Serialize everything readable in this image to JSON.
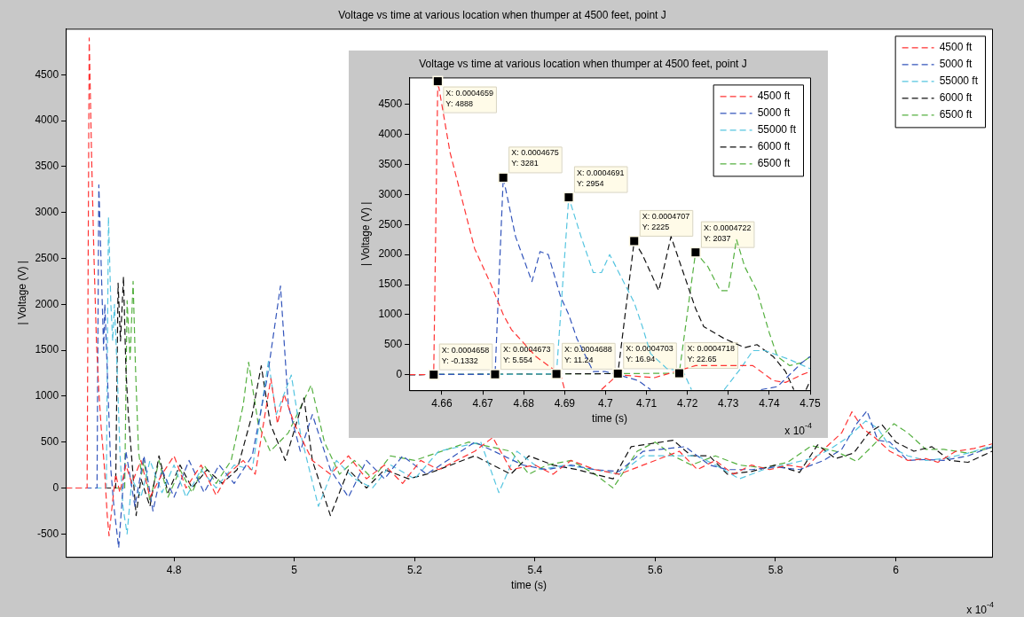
{
  "chart_data": [
    {
      "type": "line",
      "title": "Voltage vs time at various location when thumper at 4500 feet, point J",
      "xlabel": "time (s)",
      "ylabel": "| Voltage (V) |",
      "xlim": [
        4.62,
        6.16
      ],
      "ylim": [
        -750,
        5000
      ],
      "xticks": [
        4.8,
        5,
        5.2,
        5.4,
        5.6,
        5.8,
        6
      ],
      "yticks": [
        -500,
        0,
        500,
        1000,
        1500,
        2000,
        2500,
        3000,
        3500,
        4000,
        4500
      ],
      "legend": "top right",
      "line_style": "dashed",
      "annotations": [
        "x 10$^{-4}$"
      ],
      "series": [
        {
          "name": "4500 ft",
          "color": "#ff3333",
          "x": [
            4.62,
            4.6555,
            4.659,
            4.663,
            4.667,
            4.671,
            4.675,
            4.679,
            4.684,
            4.689,
            4.692,
            4.697,
            4.703,
            4.71,
            4.72,
            4.73,
            4.745,
            4.76,
            4.78,
            4.8,
            4.82,
            4.845,
            4.87,
            4.89,
            4.915,
            4.935,
            4.961,
            4.972,
            4.983,
            5.0,
            5.03,
            5.06,
            5.09,
            5.12,
            5.15,
            5.18,
            5.21,
            5.24,
            5.3,
            5.33,
            5.36,
            5.4,
            5.43,
            5.46,
            5.5,
            5.54,
            5.64,
            5.67,
            5.7,
            5.73,
            5.76,
            5.79,
            5.82,
            5.85,
            5.88,
            5.91,
            5.927,
            5.945,
            5.965,
            5.99,
            6.02,
            6.05,
            6.07,
            6.1,
            6.13,
            6.16
          ],
          "values": [
            0,
            0,
            4900,
            3600,
            2500,
            1600,
            1050,
            650,
            250,
            -300,
            -520,
            -200,
            150,
            -50,
            250,
            50,
            300,
            -100,
            150,
            350,
            0,
            250,
            -80,
            150,
            300,
            150,
            1190,
            700,
            1020,
            700,
            300,
            150,
            350,
            100,
            250,
            50,
            300,
            200,
            400,
            550,
            200,
            250,
            150,
            300,
            200,
            150,
            400,
            200,
            300,
            150,
            250,
            200,
            250,
            220,
            420,
            600,
            830,
            650,
            550,
            400,
            300,
            320,
            280,
            400,
            430,
            480
          ]
        },
        {
          "name": "5000 ft",
          "color": "#3355bb",
          "x": [
            4.62,
            4.672,
            4.675,
            4.679,
            4.683,
            4.685,
            4.69,
            4.695,
            4.7,
            4.708,
            4.714,
            4.72,
            4.735,
            4.75,
            4.765,
            4.78,
            4.8,
            4.825,
            4.85,
            4.875,
            4.9,
            4.93,
            4.955,
            4.977,
            4.99,
            5.01,
            5.03,
            5.06,
            5.09,
            5.12,
            5.15,
            5.18,
            5.22,
            5.3,
            5.38,
            5.42,
            5.46,
            5.5,
            5.54,
            5.58,
            5.65,
            5.69,
            5.72,
            5.76,
            5.8,
            5.84,
            5.88,
            5.91,
            5.935,
            5.952,
            5.97,
            5.99,
            6.02,
            6.05,
            6.08,
            6.12,
            6.16
          ],
          "values": [
            0,
            0,
            3300,
            2400,
            1500,
            2000,
            1100,
            200,
            -200,
            -650,
            -100,
            400,
            -200,
            350,
            -250,
            200,
            -100,
            300,
            -50,
            250,
            50,
            350,
            1200,
            2200,
            900,
            400,
            800,
            200,
            -100,
            300,
            100,
            350,
            150,
            500,
            250,
            200,
            250,
            200,
            180,
            400,
            450,
            250,
            200,
            200,
            230,
            200,
            300,
            420,
            700,
            840,
            520,
            500,
            300,
            310,
            300,
            350,
            450
          ]
        },
        {
          "name": "55000 ft",
          "color": "#55c5e0",
          "x": [
            4.62,
            4.6875,
            4.691,
            4.695,
            4.698,
            4.701,
            4.706,
            4.71,
            4.715,
            4.722,
            4.73,
            4.745,
            4.76,
            4.78,
            4.8,
            4.82,
            4.845,
            4.87,
            4.9,
            4.93,
            4.957,
            4.97,
            4.995,
            5.01,
            5.04,
            5.07,
            5.1,
            5.13,
            5.16,
            5.2,
            5.24,
            5.31,
            5.34,
            5.37,
            5.41,
            5.45,
            5.5,
            5.54,
            5.58,
            5.67,
            5.7,
            5.74,
            5.78,
            5.82,
            5.86,
            5.89,
            5.92,
            5.95,
            5.97,
            5.99,
            6.02,
            6.05,
            6.08,
            6.12,
            6.16
          ],
          "values": [
            0,
            0,
            2950,
            2000,
            1600,
            2000,
            1200,
            400,
            -200,
            -500,
            100,
            -100,
            300,
            -50,
            250,
            -100,
            200,
            0,
            250,
            200,
            1380,
            800,
            1230,
            600,
            -200,
            300,
            100,
            0,
            250,
            100,
            400,
            500,
            -50,
            400,
            200,
            250,
            200,
            150,
            350,
            350,
            250,
            100,
            200,
            260,
            320,
            420,
            550,
            730,
            650,
            450,
            350,
            300,
            320,
            380,
            460
          ]
        },
        {
          "name": "6000 ft",
          "color": "#111111",
          "x": [
            4.62,
            4.703,
            4.707,
            4.711,
            4.716,
            4.72,
            4.724,
            4.73,
            4.737,
            4.745,
            4.76,
            4.775,
            4.79,
            4.81,
            4.83,
            4.855,
            4.88,
            4.905,
            4.93,
            4.945,
            4.96,
            4.985,
            5.016,
            5.03,
            5.06,
            5.09,
            5.12,
            5.15,
            5.19,
            5.22,
            5.3,
            5.36,
            5.39,
            5.43,
            5.47,
            5.5,
            5.53,
            5.56,
            5.63,
            5.66,
            5.69,
            5.72,
            5.76,
            5.8,
            5.84,
            5.87,
            5.9,
            5.93,
            5.955,
            5.977,
            6.0,
            6.03,
            6.06,
            6.09,
            6.12,
            6.16
          ],
          "values": [
            0,
            0,
            2230,
            1600,
            2300,
            1300,
            800,
            300,
            -300,
            100,
            -200,
            350,
            -50,
            250,
            0,
            200,
            50,
            200,
            800,
            1330,
            700,
            300,
            980,
            300,
            -300,
            200,
            0,
            200,
            100,
            150,
            350,
            150,
            350,
            250,
            200,
            150,
            100,
            450,
            520,
            350,
            350,
            150,
            180,
            250,
            170,
            470,
            320,
            380,
            600,
            690,
            500,
            400,
            450,
            300,
            280,
            400
          ]
        },
        {
          "name": "6500 ft",
          "color": "#55b040",
          "x": [
            4.62,
            4.718,
            4.722,
            4.727,
            4.732,
            4.736,
            4.741,
            4.746,
            4.75,
            4.76,
            4.775,
            4.79,
            4.81,
            4.83,
            4.85,
            4.87,
            4.895,
            4.915,
            4.924,
            4.94,
            4.96,
            4.99,
            5.028,
            5.05,
            5.075,
            5.1,
            5.13,
            5.16,
            5.2,
            5.29,
            5.36,
            5.39,
            5.42,
            5.46,
            5.5,
            5.53,
            5.57,
            5.6,
            5.63,
            5.66,
            5.7,
            5.74,
            5.78,
            5.82,
            5.86,
            5.9,
            5.935,
            5.96,
            5.997,
            6.02,
            6.05,
            6.08,
            6.12,
            6.16
          ],
          "values": [
            0,
            0,
            2040,
            1400,
            2250,
            1300,
            400,
            150,
            300,
            -150,
            300,
            -100,
            200,
            -50,
            250,
            50,
            300,
            900,
            1370,
            700,
            400,
            600,
            1120,
            500,
            150,
            300,
            100,
            350,
            300,
            500,
            400,
            150,
            250,
            300,
            150,
            0,
            400,
            500,
            350,
            250,
            350,
            250,
            220,
            280,
            460,
            400,
            290,
            450,
            700,
            600,
            420,
            420,
            380,
            440
          ]
        }
      ]
    },
    {
      "type": "line",
      "title": "Voltage vs time at various location when thumper at 4500 feet, point J",
      "xlabel": "time (s)",
      "ylabel": "| Voltage (V) |",
      "xlim": [
        4.652,
        4.75
      ],
      "ylim": [
        -260,
        4950
      ],
      "xticks": [
        4.66,
        4.67,
        4.68,
        4.69,
        4.7,
        4.71,
        4.72,
        4.73,
        4.74,
        4.75
      ],
      "yticks": [
        0,
        500,
        1000,
        1500,
        2000,
        2500,
        3000,
        3500,
        4000,
        4500
      ],
      "legend": "top right",
      "line_style": "dashed",
      "annotations": [
        "x 10$^{-4}$",
        {
          "text": "X: 0.0004659\nY: 4888",
          "x": 4.659,
          "y": 4888
        },
        {
          "text": "X: 0.0004675\nY: 3281",
          "x": 4.675,
          "y": 3281
        },
        {
          "text": "X: 0.0004691\nY: 2954",
          "x": 4.691,
          "y": 2954
        },
        {
          "text": "X: 0.0004707\nY: 2225",
          "x": 4.707,
          "y": 2225
        },
        {
          "text": "X: 0.0004722\nY: 2037",
          "x": 4.722,
          "y": 2037
        },
        {
          "text": "X: 0.0004658\nY: -0.1332",
          "x": 4.658,
          "y": -0.1332
        },
        {
          "text": "X: 0.0004673\nY: 5.554",
          "x": 4.673,
          "y": 5.554
        },
        {
          "text": "X: 0.0004688\nY: 11.24",
          "x": 4.688,
          "y": 11.24
        },
        {
          "text": "X: 0.0004703\nY: 16.94",
          "x": 4.703,
          "y": 16.94
        },
        {
          "text": "X: 0.0004718\nY: 22.65",
          "x": 4.718,
          "y": 22.65
        }
      ],
      "series": [
        {
          "name": "4500 ft",
          "color": "#ff3333",
          "x": [
            4.652,
            4.658,
            4.659,
            4.662,
            4.665,
            4.668,
            4.672,
            4.675,
            4.677,
            4.683,
            4.689,
            4.69,
            4.695,
            4.699,
            4.703,
            4.708,
            4.712,
            4.717,
            4.722,
            4.73,
            4.736,
            4.741,
            4.744,
            4.748,
            4.75
          ],
          "values": [
            0,
            -0.1332,
            4888,
            3700,
            2900,
            2100,
            1500,
            1000,
            750,
            300,
            0,
            -250,
            null,
            -250,
            0,
            -30,
            -50,
            50,
            150,
            150,
            150,
            -100,
            -130,
            0,
            50
          ]
        },
        {
          "name": "5000 ft",
          "color": "#3355bb",
          "x": [
            4.652,
            4.673,
            4.675,
            4.678,
            4.682,
            4.684,
            4.686,
            4.689,
            4.691,
            4.693,
            4.697,
            4.7,
            4.703,
            4.708,
            4.711,
            4.725,
            4.738,
            4.742,
            4.748,
            4.75
          ],
          "values": [
            0,
            5.554,
            3281,
            2300,
            1550,
            2050,
            2000,
            1300,
            1000,
            600,
            50,
            50,
            0,
            -100,
            -250,
            null,
            -250,
            -200,
            200,
            300
          ]
        },
        {
          "name": "55000 ft",
          "color": "#55c5e0",
          "x": [
            4.652,
            4.688,
            4.691,
            4.694,
            4.697,
            4.699,
            4.701,
            4.704,
            4.707,
            4.709,
            4.711,
            4.715,
            4.719,
            4.721,
            4.725,
            4.729,
            4.733,
            4.736,
            4.739,
            4.745,
            4.75
          ],
          "values": [
            0,
            11.24,
            2954,
            2300,
            1700,
            1700,
            2000,
            1600,
            1200,
            800,
            350,
            100,
            50,
            -250,
            null,
            -250,
            100,
            400,
            400,
            250,
            100
          ]
        },
        {
          "name": "6000 ft",
          "color": "#111111",
          "x": [
            4.652,
            4.703,
            4.707,
            4.709,
            4.713,
            4.716,
            4.719,
            4.722,
            4.724,
            4.729,
            4.734,
            4.737,
            4.741,
            4.744,
            4.746,
            4.748,
            4.749,
            4.75
          ],
          "values": [
            0,
            16.94,
            2225,
            2000,
            1400,
            2300,
            1700,
            1100,
            800,
            600,
            450,
            500,
            300,
            50,
            -250,
            null,
            -250,
            -100
          ]
        },
        {
          "name": "6500 ft",
          "color": "#55b040",
          "x": [
            4.652,
            4.718,
            4.722,
            4.725,
            4.728,
            4.73,
            4.732,
            4.734,
            4.737,
            4.74,
            4.742,
            4.745,
            4.748,
            4.75
          ],
          "values": [
            0,
            22.65,
            2037,
            1800,
            1400,
            1400,
            2250,
            1800,
            1400,
            700,
            300,
            150,
            200,
            300
          ]
        }
      ]
    }
  ]
}
